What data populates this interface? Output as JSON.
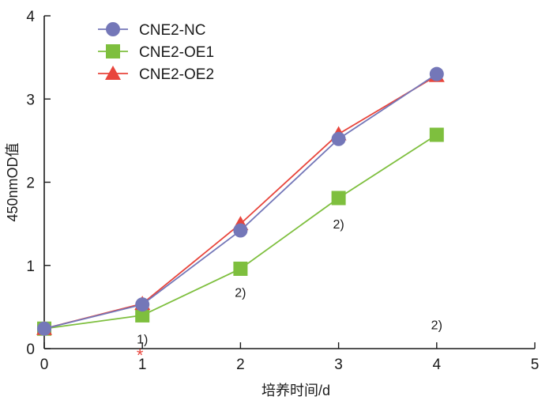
{
  "chart_data": {
    "type": "line",
    "title": "",
    "xlabel": "培养时间/d",
    "ylabel": "450nmOD值",
    "x": [
      0,
      1,
      2,
      3,
      4
    ],
    "xlim": [
      0,
      5
    ],
    "ylim": [
      0,
      4
    ],
    "xticks": [
      "0",
      "1",
      "2",
      "3",
      "4",
      "5"
    ],
    "yticks": [
      "0",
      "1",
      "2",
      "3",
      "4"
    ],
    "grid": false,
    "legend_position": "top-left",
    "series": [
      {
        "name": "CNE2-NC",
        "marker": "circle",
        "color": "#7477b8",
        "values": [
          0.24,
          0.53,
          1.42,
          2.52,
          3.3
        ]
      },
      {
        "name": "CNE2-OE1",
        "marker": "square",
        "color": "#7ebf3e",
        "values": [
          0.24,
          0.4,
          0.96,
          1.81,
          2.57
        ]
      },
      {
        "name": "CNE2-OE2",
        "marker": "triangle",
        "color": "#e8453c",
        "values": [
          0.24,
          0.54,
          1.5,
          2.58,
          3.28
        ]
      }
    ],
    "annotations": [
      {
        "text": "1)",
        "x": 1,
        "y": 0.12
      },
      {
        "text": "*",
        "x": 1,
        "y": -0.04,
        "color": "#e8453c"
      },
      {
        "text": "2)",
        "x": 2,
        "y": 0.68
      },
      {
        "text": "2)",
        "x": 3,
        "y": 1.5
      },
      {
        "text": "2)",
        "x": 4,
        "y": 0.29
      }
    ]
  }
}
